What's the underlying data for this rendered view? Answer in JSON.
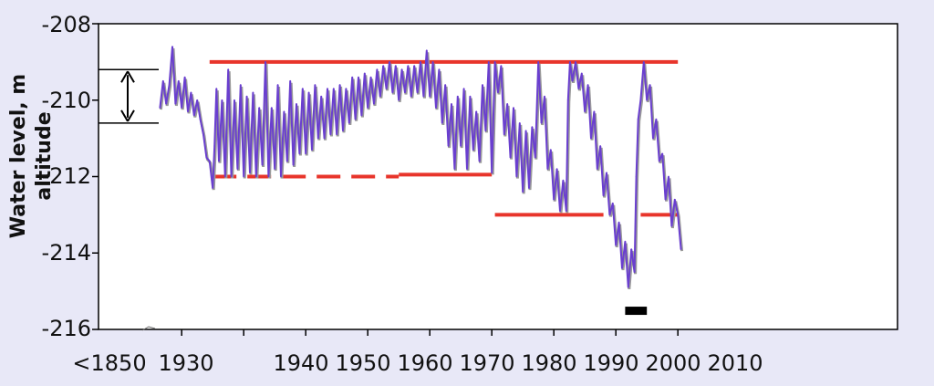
{
  "chart_data": {
    "type": "line",
    "title": "",
    "xlabel": "",
    "ylabel": "Water level, m altitude",
    "xlim": [
      1850,
      2010
    ],
    "ylim": [
      -216,
      -208
    ],
    "y_ticks": [
      -208,
      -210,
      -212,
      -214,
      -216
    ],
    "x_tick_labels": [
      "<1850",
      "1930",
      "1940",
      "1950",
      "1960",
      "1970",
      "1980",
      "1990",
      "2000",
      "2010"
    ],
    "x_ticks": [
      1921,
      1930,
      1940,
      1950,
      1960,
      1970,
      1980,
      1990,
      2000,
      2010
    ],
    "grid": false,
    "legend": "none",
    "colors": {
      "series": "#6a3fcf",
      "series_shadow": "#9a9a9a",
      "reference": "#e8352b",
      "bar": "#000000",
      "background": "#e8e8f7",
      "plot": "#ffffff"
    },
    "series": [
      {
        "points": [
          [
            1926.5,
            -210.2
          ],
          [
            1927.0,
            -209.5
          ],
          [
            1927.5,
            -210.1
          ],
          [
            1928.0,
            -209.6
          ],
          [
            1928.5,
            -208.6
          ],
          [
            1929.0,
            -210.1
          ],
          [
            1929.5,
            -209.5
          ],
          [
            1930.0,
            -210.2
          ],
          [
            1930.5,
            -209.4
          ],
          [
            1931.0,
            -210.3
          ],
          [
            1931.5,
            -209.8
          ],
          [
            1932.0,
            -210.4
          ],
          [
            1932.5,
            -210.0
          ],
          [
            1933.0,
            -210.5
          ],
          [
            1933.5,
            -210.9
          ],
          [
            1934.0,
            -211.5
          ],
          [
            1934.5,
            -211.6
          ],
          [
            1935.0,
            -212.3
          ],
          [
            1935.3,
            -211.2
          ],
          [
            1935.6,
            -209.7
          ],
          [
            1936.0,
            -211.6
          ],
          [
            1936.5,
            -210.0
          ],
          [
            1937.0,
            -212.0
          ],
          [
            1937.5,
            -209.2
          ],
          [
            1938.0,
            -212.0
          ],
          [
            1938.5,
            -210.0
          ],
          [
            1939.0,
            -211.8
          ],
          [
            1939.5,
            -209.6
          ],
          [
            1940.0,
            -212.0
          ],
          [
            1940.5,
            -209.9
          ],
          [
            1941.0,
            -211.9
          ],
          [
            1941.5,
            -209.8
          ],
          [
            1942.0,
            -212.0
          ],
          [
            1942.5,
            -210.2
          ],
          [
            1943.0,
            -211.7
          ],
          [
            1943.5,
            -209.0
          ],
          [
            1944.0,
            -212.0
          ],
          [
            1944.5,
            -210.2
          ],
          [
            1945.0,
            -211.8
          ],
          [
            1945.5,
            -209.6
          ],
          [
            1946.0,
            -212.0
          ],
          [
            1946.5,
            -210.3
          ],
          [
            1947.0,
            -211.6
          ],
          [
            1947.5,
            -209.5
          ],
          [
            1948.0,
            -211.7
          ],
          [
            1948.5,
            -210.1
          ],
          [
            1949.0,
            -211.4
          ],
          [
            1949.5,
            -209.7
          ],
          [
            1950.0,
            -211.4
          ],
          [
            1950.5,
            -209.8
          ],
          [
            1951.0,
            -211.3
          ],
          [
            1951.5,
            -209.6
          ],
          [
            1952.0,
            -211.0
          ],
          [
            1952.5,
            -209.9
          ],
          [
            1953.0,
            -211.0
          ],
          [
            1953.5,
            -209.7
          ],
          [
            1954.0,
            -210.9
          ],
          [
            1954.5,
            -209.7
          ],
          [
            1955.0,
            -210.9
          ],
          [
            1955.5,
            -209.6
          ],
          [
            1956.0,
            -210.8
          ],
          [
            1956.5,
            -209.7
          ],
          [
            1957.0,
            -210.6
          ],
          [
            1957.5,
            -209.4
          ],
          [
            1958.0,
            -210.5
          ],
          [
            1958.5,
            -209.4
          ],
          [
            1959.0,
            -210.4
          ],
          [
            1959.5,
            -209.3
          ],
          [
            1960.0,
            -210.2
          ],
          [
            1960.5,
            -209.4
          ],
          [
            1961.0,
            -210.1
          ],
          [
            1961.5,
            -209.2
          ],
          [
            1962.0,
            -209.9
          ],
          [
            1962.5,
            -209.1
          ],
          [
            1963.0,
            -209.7
          ],
          [
            1963.5,
            -209.0
          ],
          [
            1964.0,
            -209.8
          ],
          [
            1964.5,
            -209.1
          ],
          [
            1965.0,
            -210.0
          ],
          [
            1965.5,
            -209.2
          ],
          [
            1966.0,
            -209.8
          ],
          [
            1966.5,
            -209.1
          ],
          [
            1967.0,
            -209.9
          ],
          [
            1967.5,
            -209.1
          ],
          [
            1968.0,
            -209.8
          ],
          [
            1968.5,
            -209.0
          ],
          [
            1969.0,
            -209.9
          ],
          [
            1969.5,
            -208.7
          ],
          [
            1970.0,
            -209.9
          ],
          [
            1970.5,
            -209.0
          ],
          [
            1971.0,
            -210.2
          ],
          [
            1971.5,
            -209.2
          ],
          [
            1972.0,
            -210.6
          ],
          [
            1972.5,
            -209.6
          ],
          [
            1973.0,
            -211.2
          ],
          [
            1973.5,
            -210.1
          ],
          [
            1974.0,
            -211.8
          ],
          [
            1974.5,
            -209.9
          ],
          [
            1975.0,
            -211.2
          ],
          [
            1975.5,
            -209.7
          ],
          [
            1976.0,
            -211.8
          ],
          [
            1976.5,
            -209.9
          ],
          [
            1977.0,
            -211.3
          ],
          [
            1977.5,
            -210.3
          ],
          [
            1978.0,
            -211.6
          ],
          [
            1978.5,
            -209.6
          ],
          [
            1979.0,
            -210.8
          ],
          [
            1979.5,
            -209.0
          ],
          [
            1980.0,
            -211.9
          ],
          [
            1980.5,
            -209.0
          ],
          [
            1981.0,
            -209.8
          ],
          [
            1981.5,
            -209.1
          ],
          [
            1982.0,
            -210.9
          ],
          [
            1982.5,
            -210.1
          ],
          [
            1983.0,
            -211.5
          ],
          [
            1983.5,
            -210.2
          ],
          [
            1984.0,
            -212.0
          ],
          [
            1984.5,
            -210.6
          ],
          [
            1985.0,
            -212.4
          ],
          [
            1985.5,
            -210.8
          ],
          [
            1986.0,
            -212.3
          ],
          [
            1986.5,
            -210.7
          ],
          [
            1987.0,
            -211.5
          ],
          [
            1987.5,
            -209.0
          ],
          [
            1988.0,
            -210.6
          ],
          [
            1988.5,
            -209.9
          ],
          [
            1989.0,
            -211.8
          ],
          [
            1989.5,
            -211.3
          ],
          [
            1990.0,
            -212.6
          ],
          [
            1990.5,
            -211.8
          ],
          [
            1991.0,
            -212.9
          ],
          [
            1991.5,
            -212.1
          ],
          [
            1992.0,
            -212.9
          ],
          [
            1992.3,
            -210.0
          ],
          [
            1992.6,
            -209.0
          ],
          [
            1993.0,
            -209.5
          ],
          [
            1993.5,
            -209.0
          ],
          [
            1994.0,
            -209.7
          ],
          [
            1994.5,
            -209.3
          ],
          [
            1995.0,
            -210.3
          ],
          [
            1995.5,
            -209.6
          ],
          [
            1996.0,
            -211.0
          ],
          [
            1996.5,
            -210.3
          ],
          [
            1997.0,
            -211.8
          ],
          [
            1997.5,
            -211.2
          ],
          [
            1998.0,
            -212.5
          ],
          [
            1998.5,
            -211.9
          ],
          [
            1999.0,
            -213.0
          ],
          [
            1999.5,
            -212.7
          ],
          [
            2000.0,
            -213.8
          ],
          [
            2000.5,
            -213.2
          ],
          [
            2001.0,
            -214.4
          ],
          [
            2001.5,
            -213.7
          ],
          [
            2002.0,
            -214.9
          ],
          [
            2002.5,
            -213.9
          ],
          [
            2003.0,
            -214.5
          ],
          [
            2003.3,
            -212.0
          ],
          [
            2003.6,
            -210.5
          ],
          [
            2004.0,
            -210.0
          ],
          [
            2004.5,
            -209.0
          ],
          [
            2005.0,
            -210.0
          ],
          [
            2005.5,
            -209.6
          ],
          [
            2006.0,
            -211.0
          ],
          [
            2006.5,
            -210.5
          ],
          [
            2007.0,
            -211.6
          ],
          [
            2007.5,
            -211.4
          ],
          [
            2008.0,
            -212.6
          ],
          [
            2008.5,
            -212.0
          ],
          [
            2009.0,
            -213.3
          ],
          [
            2009.5,
            -212.6
          ],
          [
            2010.0,
            -213.0
          ],
          [
            2010.5,
            -213.9
          ]
        ]
      }
    ],
    "reference_lines": [
      {
        "x": [
          1934.5,
          2010.0
        ],
        "y": -209.0,
        "style": "solid"
      },
      {
        "x": [
          1935.0,
          1965.0
        ],
        "y": -212.0,
        "style": "dashed"
      },
      {
        "x": [
          1965.0,
          1980.0
        ],
        "y": -211.95,
        "style": "solid"
      },
      {
        "x": [
          1980.5,
          1998.0
        ],
        "y": -213.0,
        "style": "solid"
      },
      {
        "x": [
          2004.0,
          2010.0
        ],
        "y": -213.0,
        "style": "solid"
      }
    ],
    "amplitude_marker": {
      "y_top": -209.2,
      "y_bottom": -210.6
    },
    "black_bar": {
      "x": [
        2001.5,
        2005.0
      ],
      "y": -215.5
    }
  }
}
